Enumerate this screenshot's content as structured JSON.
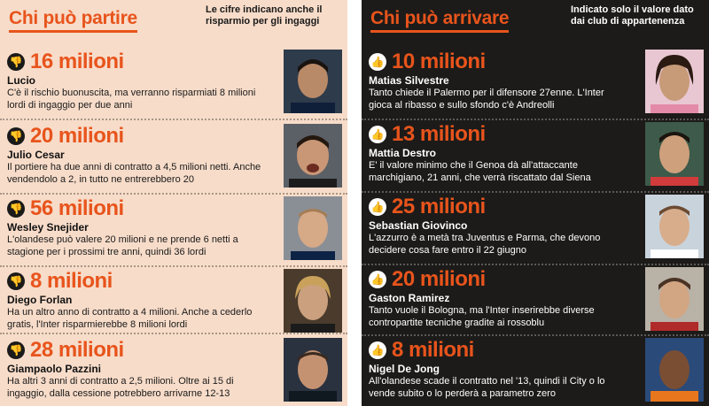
{
  "left_panel": {
    "title": "Chi può partire",
    "note": "Le cifre indicano anche il risparmio per gli ingaggi",
    "entries": [
      {
        "amount": "16 milioni",
        "name": "Lucio",
        "desc": "C'è il rischio buonuscita, ma verranno risparmiati 8 milioni lordi di ingaggio per due anni"
      },
      {
        "amount": "20 milioni",
        "name": "Julio Cesar",
        "desc": "Il portiere ha due anni di contratto a 4,5 milioni netti. Anche vendendolo a 2, in tutto ne entrerebbero 20"
      },
      {
        "amount": "56 milioni",
        "name": "Wesley Snejider",
        "desc": "L'olandese può valere 20 milioni e ne prende 6 netti a stagione per i prossimi tre anni, quindi 36 lordi"
      },
      {
        "amount": "8 milioni",
        "name": "Diego Forlan",
        "desc": "Ha un altro anno di contratto a 4 milioni. Anche a cederlo gratis, l'Inter risparmierebbe 8 milioni lordi"
      },
      {
        "amount": "28 milioni",
        "name": "Giampaolo Pazzini",
        "desc": "Ha altri 3 anni di contratto a 2,5 milioni. Oltre ai 15 di ingaggio, dalla cessione potrebbero arrivarne 12-13"
      }
    ]
  },
  "right_panel": {
    "title": "Chi può arrivare",
    "note": "Indicato solo il valore dato dai club di appartenenza",
    "entries": [
      {
        "amount": "10 milioni",
        "name": "Matias Silvestre",
        "desc": "Tanto chiede il Palermo per il difensore 27enne. L'Inter gioca al ribasso e sullo sfondo c'è Andreolli"
      },
      {
        "amount": "13 milioni",
        "name": "Mattia Destro",
        "desc": "E' il valore minimo che il Genoa dà all'attaccante marchigiano, 21 anni, che verrà riscattato dal Siena"
      },
      {
        "amount": "25 milioni",
        "name": "Sebastian Giovinco",
        "desc": "L'azzurro è a metà tra Juventus e Parma, che devono decidere cosa fare entro il 22 giugno"
      },
      {
        "amount": "20 milioni",
        "name": "Gaston Ramirez",
        "desc": "Tanto vuole il Bologna, ma l'Inter inserirebbe diverse contropartite tecniche gradite ai rossoblu"
      },
      {
        "amount": "8 milioni",
        "name": "Nigel De Jong",
        "desc": "All'olandese scade il contratto nel '13, quindi il City o lo vende subito o lo perderà a parametro zero"
      }
    ]
  },
  "icons": {
    "left_badge": "thumbs-down-icon",
    "right_badge": "thumbs-up-icon"
  },
  "colors": {
    "accent": "#e8541c",
    "left_bg": "#f7dcc9",
    "right_bg": "#1c1b19"
  }
}
